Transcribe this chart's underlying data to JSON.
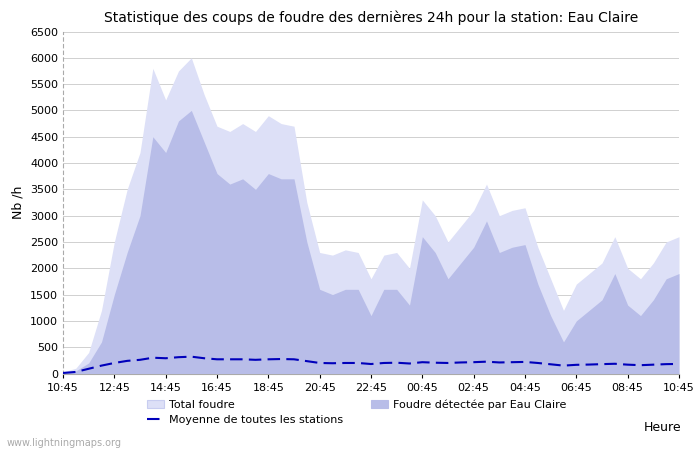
{
  "title": "Statistique des coups de foudre des dernières 24h pour la station: Eau Claire",
  "xlabel": "Heure",
  "ylabel": "Nb /h",
  "ylim": [
    0,
    6500
  ],
  "yticks": [
    0,
    500,
    1000,
    1500,
    2000,
    2500,
    3000,
    3500,
    4000,
    4500,
    5000,
    5500,
    6000,
    6500
  ],
  "xtick_labels": [
    "10:45",
    "12:45",
    "14:45",
    "16:45",
    "18:45",
    "20:45",
    "22:45",
    "00:45",
    "02:45",
    "04:45",
    "06:45",
    "08:45",
    "10:45"
  ],
  "background_color": "#ffffff",
  "plot_bg_color": "#ffffff",
  "grid_color": "#d0d0d0",
  "total_foudre_color": "#dde0f7",
  "total_foudre_edge": "#c8cdf0",
  "foudre_detected_color": "#b8bde8",
  "foudre_detected_edge": "#b8bde8",
  "moyenne_color": "#0000bb",
  "watermark": "www.lightningmaps.org",
  "legend": {
    "total_foudre": "Total foudre",
    "moyenne": "Moyenne de toutes les stations",
    "foudre_detected": "Foudre détectée par Eau Claire"
  },
  "total_foudre_values": [
    30,
    100,
    400,
    1200,
    2500,
    3500,
    4200,
    5800,
    5200,
    5750,
    6000,
    5300,
    4700,
    4600,
    4750,
    4600,
    4900,
    4750,
    4700,
    3250,
    2300,
    2250,
    2350,
    2300,
    1800,
    2250,
    2300,
    2000,
    3300,
    3000,
    2500,
    2800,
    3100,
    3600,
    3000,
    3100,
    3150,
    2400,
    1800,
    1200,
    1700,
    1900,
    2100,
    2600,
    2000,
    1800,
    2100,
    2500,
    2600
  ],
  "foudre_detected_values": [
    10,
    50,
    200,
    600,
    1500,
    2300,
    3000,
    4500,
    4200,
    4800,
    5000,
    4400,
    3800,
    3600,
    3700,
    3500,
    3800,
    3700,
    3700,
    2500,
    1600,
    1500,
    1600,
    1600,
    1100,
    1600,
    1600,
    1300,
    2600,
    2300,
    1800,
    2100,
    2400,
    2900,
    2300,
    2400,
    2450,
    1700,
    1100,
    600,
    1000,
    1200,
    1400,
    1900,
    1300,
    1100,
    1400,
    1800,
    1900
  ],
  "moyenne_values": [
    10,
    30,
    90,
    150,
    200,
    240,
    260,
    300,
    290,
    310,
    320,
    290,
    270,
    270,
    270,
    260,
    270,
    275,
    270,
    235,
    200,
    195,
    200,
    200,
    180,
    200,
    205,
    190,
    215,
    205,
    200,
    210,
    215,
    225,
    210,
    215,
    220,
    200,
    175,
    150,
    165,
    170,
    178,
    185,
    168,
    158,
    168,
    178,
    182
  ],
  "n_points": 49
}
